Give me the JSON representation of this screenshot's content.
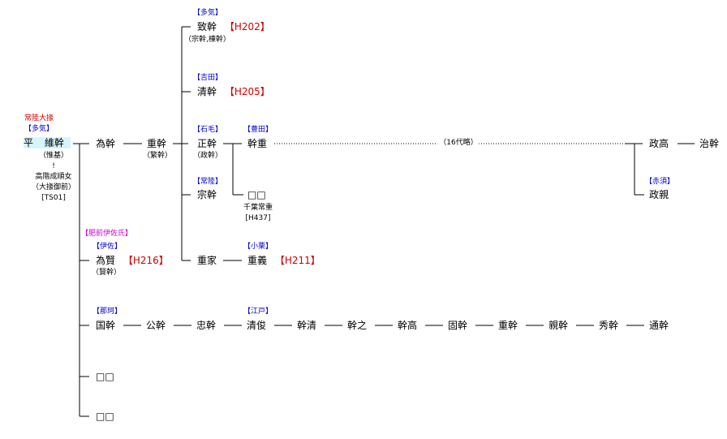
{
  "title": {
    "line1": "常陸大掾",
    "clan": "【多気】"
  },
  "root": {
    "surname": "平",
    "name": "維幹",
    "alt": "（惟基）",
    "note1": "!",
    "note2": "高階成順女",
    "note3": "（大掾御前）",
    "ref": "[TS01]"
  },
  "nodes": {
    "tamemoto": "為幹",
    "shigemoto": "重幹",
    "shigemoto_alt": "（繁幹）",
    "munemoto_top_tag": "【多気】",
    "munemoto_top": "致幹",
    "munemoto_top_ref": "【H202】",
    "munemoto_top_alt": "（宗幹,棟幹）",
    "kiyomoto_tag": "【吉田】",
    "kiyomoto": "清幹",
    "kiyomoto_ref": "【H205】",
    "masamoto_tag": "【石毛】",
    "masamoto": "正幹",
    "masamoto_alt": "（政幹）",
    "motoshige_tag": "【豊田】",
    "motoshige": "幹重",
    "dotted_note": "（16代略）",
    "masataka": "政高",
    "harumoto": "治幹",
    "akasu_tag": "【赤須】",
    "masachika": "政親",
    "unknown1": "□□",
    "unknown1_note": "千葉常重",
    "unknown1_ref": "[H437]",
    "munemoto_tag": "【常陸】",
    "munemoto": "宗幹",
    "shigeie": "重家",
    "oguri_tag": "【小栗】",
    "shigeyoshi": "重義",
    "shigeyoshi_ref": "【H211】",
    "hizen_tag": "【肥前伊佐氏】",
    "isa_tag": "【伊佐】",
    "tamekata": "為賢",
    "tamekata_ref": "【H216】",
    "tamekata_alt": "（賢幹）",
    "naka_tag": "【那珂】",
    "edo_tag": "【江戸】",
    "unknown2": "□□",
    "unknown3": "□□"
  },
  "naka_line": [
    "国幹",
    "公幹",
    "忠幹",
    "清俊",
    "幹清",
    "幹之",
    "幹高",
    "固幹",
    "重幹",
    "親幹",
    "秀幹",
    "通幹"
  ],
  "colors": {
    "line": "#000000",
    "tag": "#0000cc",
    "ref": "#cc0000",
    "hizen": "#cc00cc",
    "highlight": "#d6f4fb"
  }
}
